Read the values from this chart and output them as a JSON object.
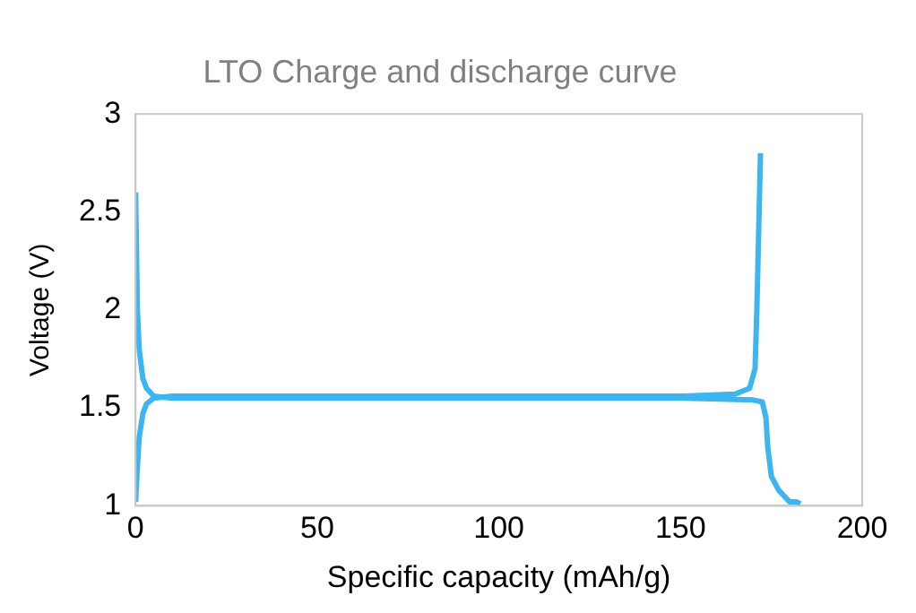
{
  "chart_data": {
    "type": "line",
    "title": "LTO Charge and discharge curve",
    "xlabel": "Specific capacity (mAh/g)",
    "ylabel": "Voltage (V)",
    "xlim": [
      0,
      200
    ],
    "xticks": [
      0,
      50,
      100,
      150,
      200
    ],
    "ylim": [
      1,
      3
    ],
    "yticks": [
      1,
      1.5,
      2,
      2.5,
      3
    ],
    "grid": false,
    "legend": false,
    "marker": "none",
    "line_style": "solid",
    "series": [
      {
        "color": "#3cb5f0",
        "x": [
          0,
          0.5,
          1,
          2,
          3,
          5,
          10,
          50,
          100,
          150,
          165,
          169,
          170.5,
          171,
          171.5,
          172
        ],
        "values": [
          1.02,
          1.2,
          1.35,
          1.47,
          1.52,
          1.55,
          1.56,
          1.56,
          1.56,
          1.56,
          1.57,
          1.6,
          1.7,
          2,
          2.4,
          2.8
        ]
      },
      {
        "color": "#3cb5f0",
        "x": [
          0,
          0.5,
          1,
          2,
          3,
          5,
          10,
          50,
          100,
          150,
          170,
          172.5,
          173.5,
          174,
          175,
          177,
          180,
          182,
          183
        ],
        "values": [
          2.6,
          2.0,
          1.8,
          1.65,
          1.6,
          1.56,
          1.55,
          1.55,
          1.55,
          1.55,
          1.54,
          1.53,
          1.45,
          1.3,
          1.15,
          1.08,
          1.02,
          1.02,
          1.01
        ]
      }
    ]
  }
}
